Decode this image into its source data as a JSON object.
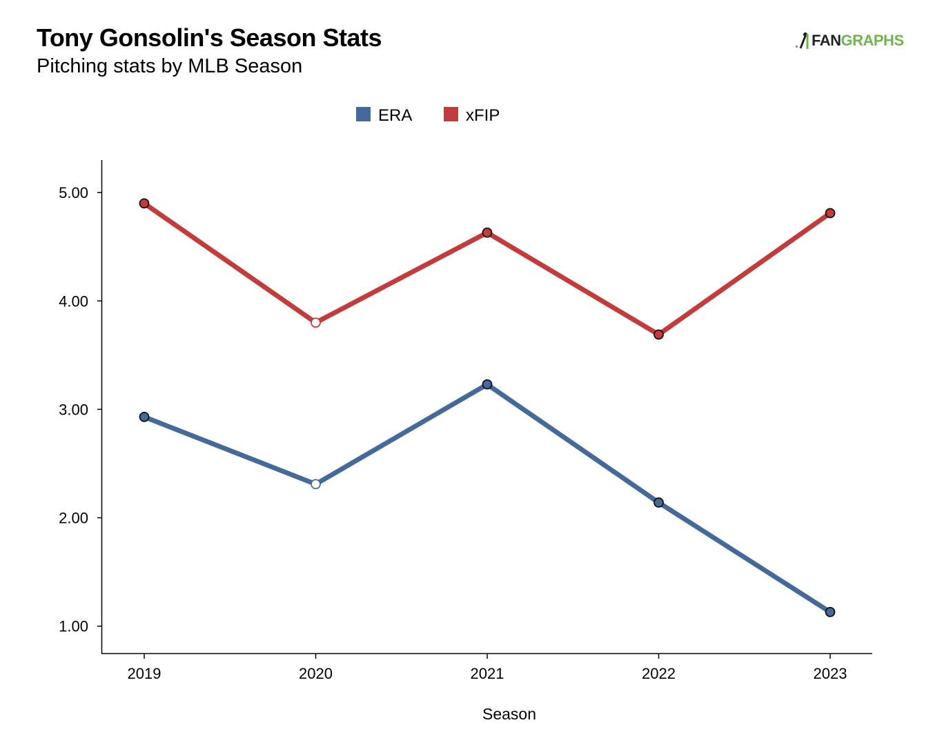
{
  "header": {
    "title": "Tony Gonsolin's Season Stats",
    "subtitle": "Pitching stats by MLB Season"
  },
  "logo": {
    "part1": "FAN",
    "part2": "GRAPHS",
    "icon": "fangraphs-batter-icon"
  },
  "colors": {
    "ERA": "#456a9a",
    "xFIP": "#c23b3d",
    "axis": "#000000"
  },
  "chart_data": {
    "type": "line",
    "title": "Tony Gonsolin's Season Stats",
    "subtitle": "Pitching stats by MLB Season",
    "xlabel": "Season",
    "ylabel": "",
    "x": [
      "2019",
      "2020",
      "2021",
      "2022",
      "2023"
    ],
    "yticks": [
      "1.00",
      "2.00",
      "3.00",
      "4.00",
      "5.00"
    ],
    "ylim": [
      0.75,
      5.3
    ],
    "grid": false,
    "legend": "top-center",
    "series": [
      {
        "name": "ERA",
        "values": [
          2.93,
          2.31,
          3.23,
          2.14,
          1.13
        ],
        "hollow": [
          false,
          true,
          false,
          false,
          false
        ]
      },
      {
        "name": "xFIP",
        "values": [
          4.9,
          3.8,
          4.63,
          3.69,
          4.81
        ],
        "hollow": [
          false,
          true,
          false,
          false,
          false
        ]
      }
    ]
  }
}
